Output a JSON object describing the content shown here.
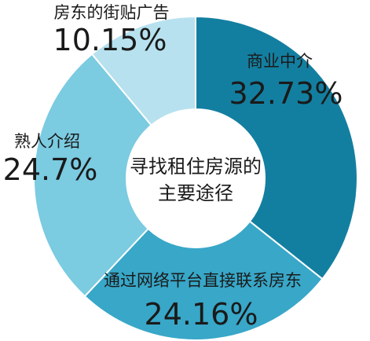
{
  "chart_data": {
    "type": "pie",
    "variant": "donut",
    "title": "寻找租住房源的主要途径",
    "title_lines": [
      "寻找租住房源的",
      "主要途径"
    ],
    "slices": [
      {
        "label": "商业中介",
        "value": 32.73,
        "value_label": "32.73%",
        "color": "#137fa0"
      },
      {
        "label": "通过网络平台直接联系房东",
        "value": 24.16,
        "value_label": "24.16%",
        "color": "#38a7c8"
      },
      {
        "label": "熟人介绍",
        "value": 24.7,
        "value_label": "24.7%",
        "color": "#7bcbe1"
      },
      {
        "label": "房东的街贴广告",
        "value": 10.15,
        "value_label": "10.15%",
        "color": "#b7e1ee"
      }
    ]
  }
}
